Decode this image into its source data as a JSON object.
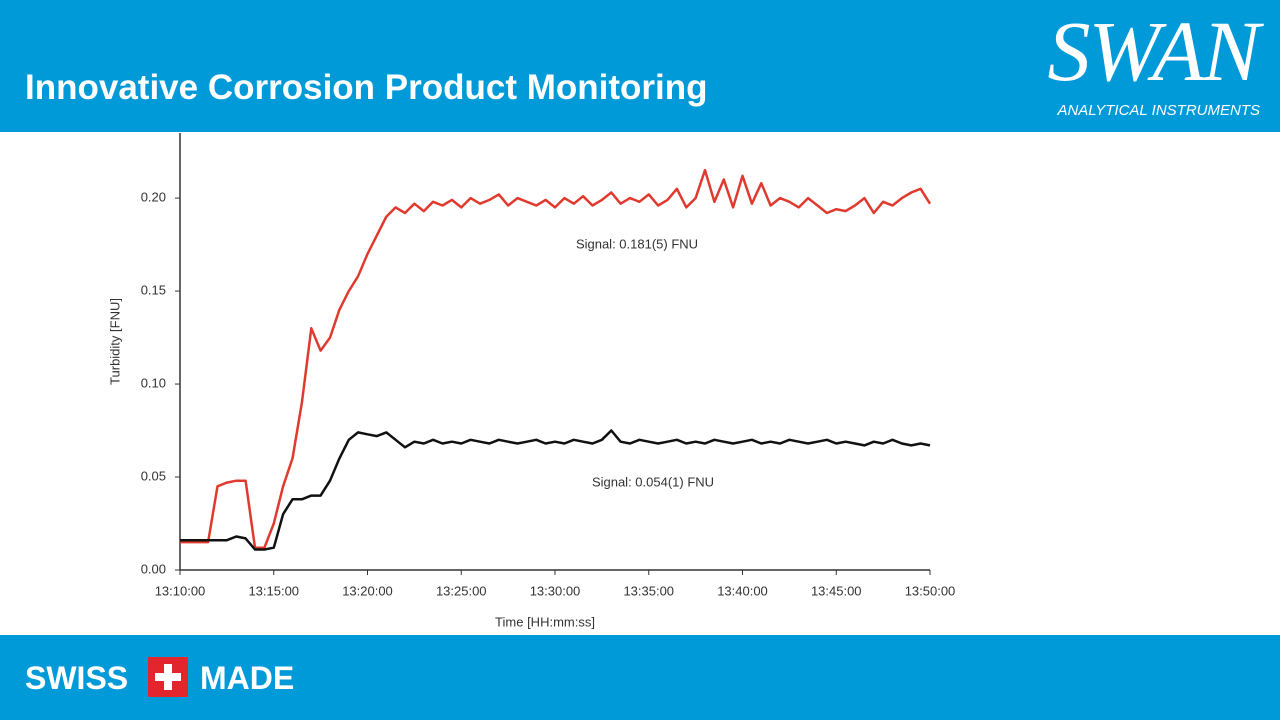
{
  "header": {
    "title": "Innovative Corrosion Product Monitoring",
    "logo": "SWAN",
    "logo_subtitle": "ANALYTICAL INSTRUMENTS"
  },
  "footer": {
    "left": "SWISS",
    "right": "MADE"
  },
  "chart_data": {
    "type": "line",
    "x_label": "Time [HH:mm:ss]",
    "y_label": "Turbidity [FNU]",
    "annotations": [
      "Signal: 0.181(5) FNU",
      "Signal: 0.054(1) FNU"
    ],
    "xlim": [
      "13:10:00",
      "13:50:00"
    ],
    "xticks": [
      "13:10:00",
      "13:15:00",
      "13:20:00",
      "13:25:00",
      "13:30:00",
      "13:35:00",
      "13:40:00",
      "13:45:00",
      "13:50:00"
    ],
    "ylim": [
      0,
      0.235
    ],
    "yticks": [
      {
        "value": 0,
        "label": "0.00"
      },
      {
        "value": 0.05,
        "label": "0.05"
      },
      {
        "value": 0.1,
        "label": "0.10"
      },
      {
        "value": 0.15,
        "label": "0.15"
      },
      {
        "value": 0.2,
        "label": "0.20"
      }
    ],
    "x": [
      "13:10:00",
      "13:10:30",
      "13:11:00",
      "13:11:30",
      "13:12:00",
      "13:12:30",
      "13:13:00",
      "13:13:30",
      "13:14:00",
      "13:14:30",
      "13:15:00",
      "13:15:30",
      "13:16:00",
      "13:16:30",
      "13:17:00",
      "13:17:30",
      "13:18:00",
      "13:18:30",
      "13:19:00",
      "13:19:30",
      "13:20:00",
      "13:20:30",
      "13:21:00",
      "13:21:30",
      "13:22:00",
      "13:22:30",
      "13:23:00",
      "13:23:30",
      "13:24:00",
      "13:24:30",
      "13:25:00",
      "13:25:30",
      "13:26:00",
      "13:26:30",
      "13:27:00",
      "13:27:30",
      "13:28:00",
      "13:28:30",
      "13:29:00",
      "13:29:30",
      "13:30:00",
      "13:30:30",
      "13:31:00",
      "13:31:30",
      "13:32:00",
      "13:32:30",
      "13:33:00",
      "13:33:30",
      "13:34:00",
      "13:34:30",
      "13:35:00",
      "13:35:30",
      "13:36:00",
      "13:36:30",
      "13:37:00",
      "13:37:30",
      "13:38:00",
      "13:38:30",
      "13:39:00",
      "13:39:30",
      "13:40:00",
      "13:40:30",
      "13:41:00",
      "13:41:30",
      "13:42:00",
      "13:42:30",
      "13:43:00",
      "13:43:30",
      "13:44:00",
      "13:44:30",
      "13:45:00",
      "13:45:30",
      "13:46:00",
      "13:46:30",
      "13:47:00",
      "13:47:30",
      "13:48:00",
      "13:48:30",
      "13:49:00",
      "13:49:30",
      "13:50:00"
    ],
    "series": [
      {
        "color": "#e03a2f",
        "values": [
          0.015,
          0.015,
          0.015,
          0.015,
          0.045,
          0.047,
          0.048,
          0.048,
          0.012,
          0.012,
          0.025,
          0.045,
          0.06,
          0.09,
          0.13,
          0.118,
          0.125,
          0.14,
          0.15,
          0.158,
          0.17,
          0.18,
          0.19,
          0.195,
          0.192,
          0.197,
          0.193,
          0.198,
          0.196,
          0.199,
          0.195,
          0.2,
          0.197,
          0.199,
          0.202,
          0.196,
          0.2,
          0.198,
          0.196,
          0.199,
          0.195,
          0.2,
          0.197,
          0.201,
          0.196,
          0.199,
          0.203,
          0.197,
          0.2,
          0.198,
          0.202,
          0.196,
          0.199,
          0.205,
          0.195,
          0.2,
          0.215,
          0.198,
          0.21,
          0.195,
          0.212,
          0.197,
          0.208,
          0.196,
          0.2,
          0.198,
          0.195,
          0.2,
          0.196,
          0.192,
          0.194,
          0.193,
          0.196,
          0.2,
          0.192,
          0.198,
          0.196,
          0.2,
          0.203,
          0.205,
          0.197
        ]
      },
      {
        "color": "#111111",
        "values": [
          0.016,
          0.016,
          0.016,
          0.016,
          0.016,
          0.016,
          0.018,
          0.017,
          0.011,
          0.011,
          0.012,
          0.03,
          0.038,
          0.038,
          0.04,
          0.04,
          0.048,
          0.06,
          0.07,
          0.074,
          0.073,
          0.072,
          0.074,
          0.07,
          0.066,
          0.069,
          0.068,
          0.07,
          0.068,
          0.069,
          0.068,
          0.07,
          0.069,
          0.068,
          0.07,
          0.069,
          0.068,
          0.069,
          0.07,
          0.068,
          0.069,
          0.068,
          0.07,
          0.069,
          0.068,
          0.07,
          0.075,
          0.069,
          0.068,
          0.07,
          0.069,
          0.068,
          0.069,
          0.07,
          0.068,
          0.069,
          0.068,
          0.07,
          0.069,
          0.068,
          0.069,
          0.07,
          0.068,
          0.069,
          0.068,
          0.07,
          0.069,
          0.068,
          0.069,
          0.07,
          0.068,
          0.069,
          0.068,
          0.067,
          0.069,
          0.068,
          0.07,
          0.068,
          0.067,
          0.068,
          0.067
        ]
      }
    ]
  }
}
